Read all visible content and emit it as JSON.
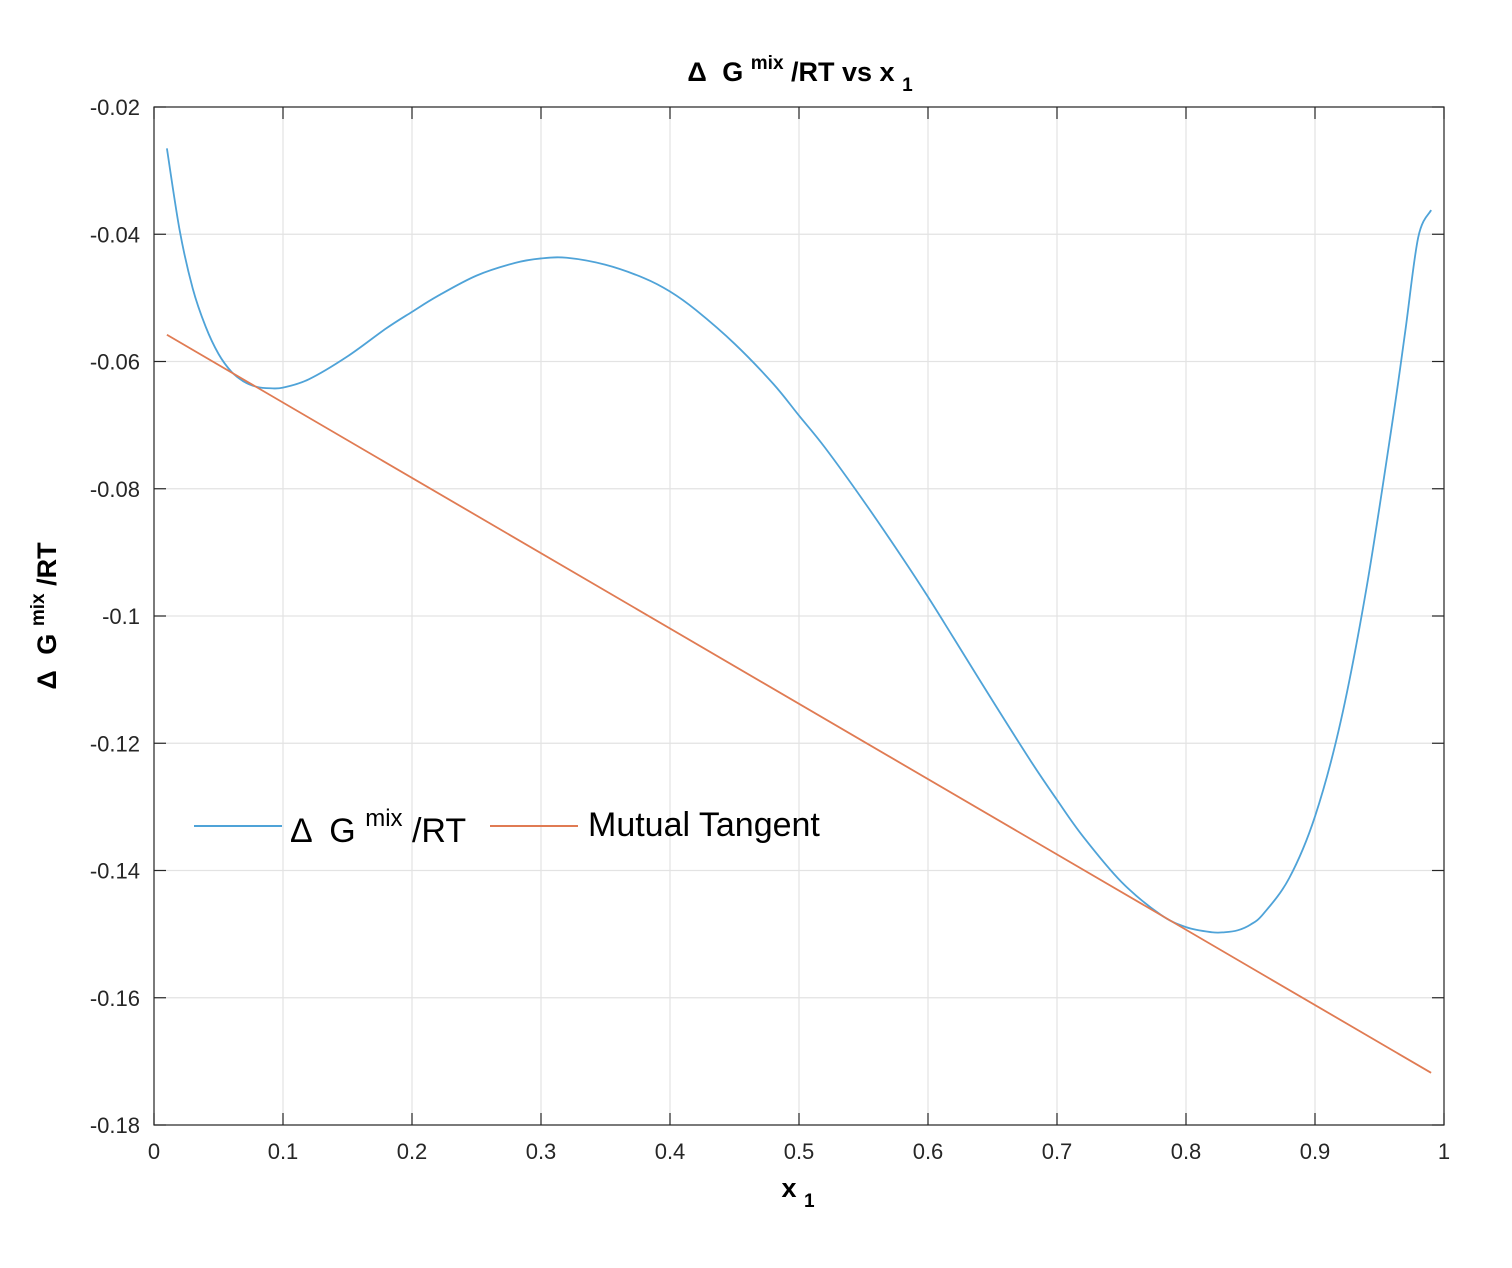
{
  "chart_data": {
    "type": "line",
    "title": {
      "delta": "Δ",
      "g": "G",
      "sup": "mix",
      "rest": "/RT vs x",
      "sub": "1"
    },
    "xlabel": {
      "main": "x",
      "sub": "1"
    },
    "ylabel": {
      "delta": "Δ",
      "g": "G",
      "sup": "mix",
      "rest": "/RT"
    },
    "xlim": [
      0,
      1
    ],
    "ylim": [
      -0.18,
      -0.02
    ],
    "xticks": [
      0,
      0.1,
      0.2,
      0.3,
      0.4,
      0.5,
      0.6,
      0.7,
      0.8,
      0.9,
      1
    ],
    "xtick_labels": [
      "0",
      "0.1",
      "0.2",
      "0.3",
      "0.4",
      "0.5",
      "0.6",
      "0.7",
      "0.8",
      "0.9",
      "1"
    ],
    "yticks": [
      -0.18,
      -0.16,
      -0.14,
      -0.12,
      -0.1,
      -0.08,
      -0.06,
      -0.04,
      -0.02
    ],
    "ytick_labels": [
      "-0.18",
      "-0.16",
      "-0.14",
      "-0.12",
      "-0.1",
      "-0.08",
      "-0.06",
      "-0.04",
      "-0.02"
    ],
    "grid": true,
    "legend_placement": "middle-left",
    "series": [
      {
        "name": {
          "delta": "Δ",
          "g": "G",
          "sup": "mix",
          "rest": "/RT"
        },
        "color": "#4fa3d8",
        "x": [
          0.01,
          0.02,
          0.03,
          0.04,
          0.05,
          0.06,
          0.07,
          0.08,
          0.09,
          0.1,
          0.12,
          0.15,
          0.18,
          0.2,
          0.22,
          0.25,
          0.28,
          0.3,
          0.32,
          0.35,
          0.38,
          0.4,
          0.42,
          0.45,
          0.48,
          0.5,
          0.52,
          0.55,
          0.58,
          0.6,
          0.62,
          0.65,
          0.68,
          0.7,
          0.72,
          0.75,
          0.78,
          0.8,
          0.82,
          0.83,
          0.84,
          0.85,
          0.86,
          0.88,
          0.9,
          0.92,
          0.94,
          0.96,
          0.97,
          0.98,
          0.99
        ],
        "y": [
          -0.0265,
          -0.0395,
          -0.0485,
          -0.0545,
          -0.0588,
          -0.0616,
          -0.0632,
          -0.064,
          -0.0642,
          -0.0641,
          -0.0628,
          -0.0592,
          -0.0548,
          -0.0522,
          -0.0497,
          -0.0465,
          -0.0445,
          -0.0438,
          -0.0437,
          -0.0448,
          -0.0469,
          -0.049,
          -0.0519,
          -0.0572,
          -0.0635,
          -0.0685,
          -0.0735,
          -0.0819,
          -0.0908,
          -0.097,
          -0.1035,
          -0.1133,
          -0.1229,
          -0.1289,
          -0.1346,
          -0.1418,
          -0.1469,
          -0.1489,
          -0.1497,
          -0.1497,
          -0.1494,
          -0.1485,
          -0.1468,
          -0.1412,
          -0.1315,
          -0.1165,
          -0.0955,
          -0.0695,
          -0.0552,
          -0.0405,
          -0.0362
        ]
      },
      {
        "name": "Mutual Tangent",
        "color": "#e07b53",
        "x": [
          0.01,
          0.99
        ],
        "y": [
          -0.0558,
          -0.1718
        ]
      }
    ]
  }
}
